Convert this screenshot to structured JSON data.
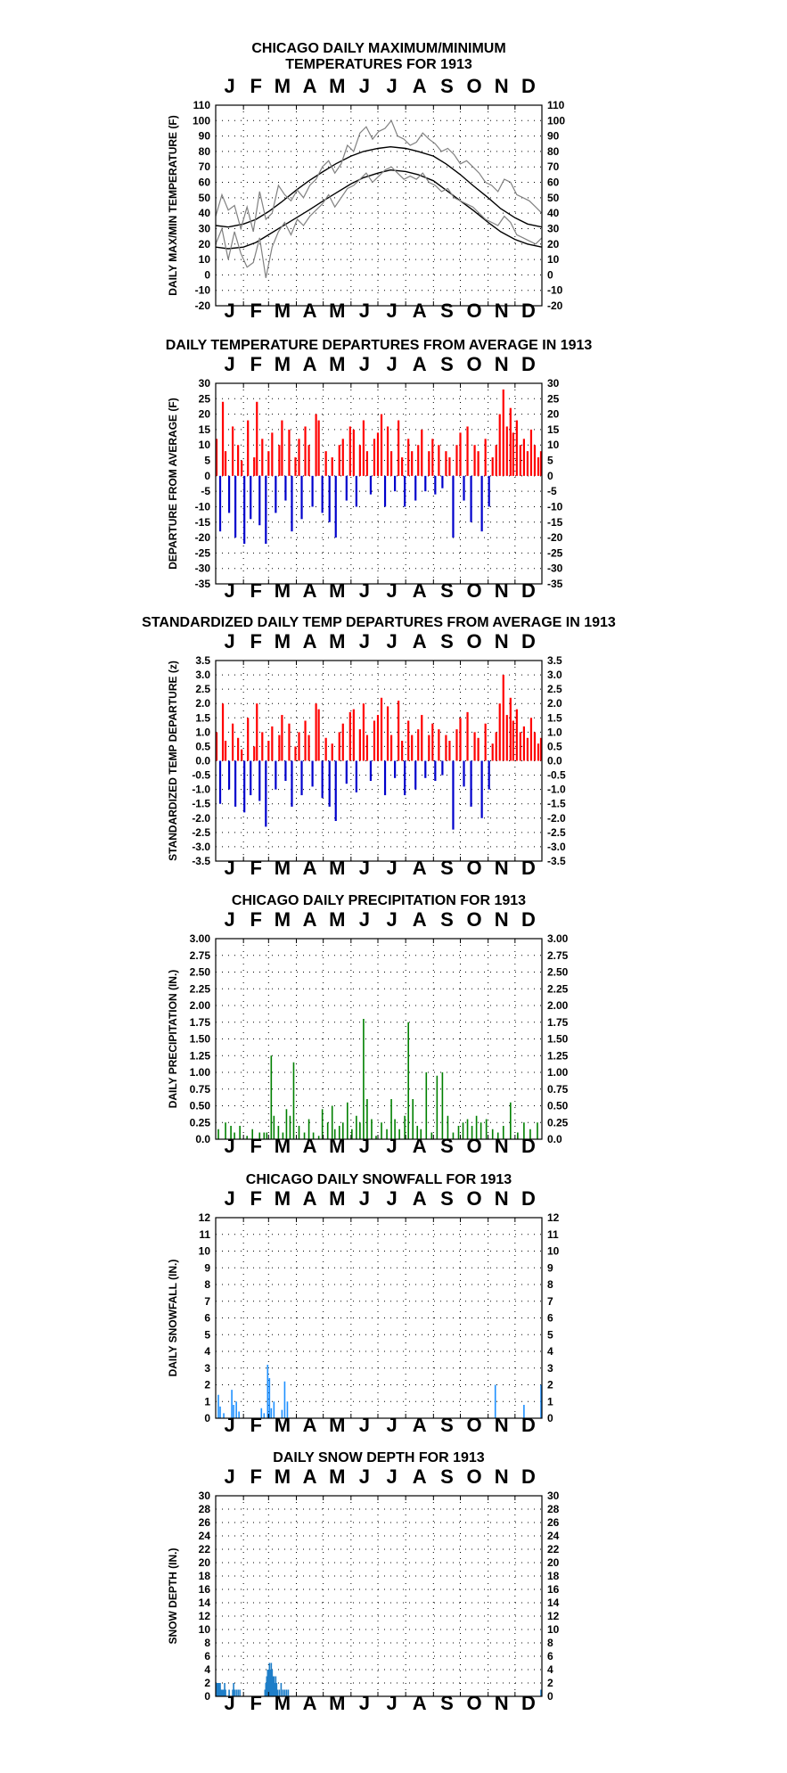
{
  "months": [
    "J",
    "F",
    "M",
    "A",
    "M",
    "J",
    "J",
    "A",
    "S",
    "O",
    "N",
    "D"
  ],
  "charts": [
    {
      "title_lines": [
        "CHICAGO DAILY MAXIMUM/MINIMUM",
        "TEMPERATURES FOR 1913"
      ],
      "ylabel": "DAILY MAX/MIN TEMPERATURE (F)",
      "yticks": [
        "110",
        "100",
        "90",
        "80",
        "70",
        "60",
        "50",
        "40",
        "30",
        "20",
        "10",
        "0",
        "-10",
        "-20"
      ]
    },
    {
      "title_lines": [
        "DAILY TEMPERATURE DEPARTURES FROM AVERAGE IN 1913"
      ],
      "ylabel": "DEPARTURE FROM AVERAGE (F)",
      "yticks": [
        "30",
        "25",
        "20",
        "15",
        "10",
        "5",
        "0",
        "-5",
        "-10",
        "-15",
        "-20",
        "-25",
        "-30",
        "-35"
      ]
    },
    {
      "title_lines": [
        "STANDARDIZED DAILY TEMP DEPARTURES FROM AVERAGE IN 1913"
      ],
      "ylabel": "STANDARDIZED TEMP DEPARTURE (z)",
      "yticks": [
        "3.5",
        "3.0",
        "2.5",
        "2.0",
        "1.5",
        "1.0",
        "0.5",
        "0.0",
        "-0.5",
        "-1.0",
        "-1.5",
        "-2.0",
        "-2.5",
        "-3.0",
        "-3.5"
      ]
    },
    {
      "title_lines": [
        "CHICAGO DAILY PRECIPITATION FOR 1913"
      ],
      "ylabel": "DAILY PRECIPITATION (IN.)",
      "yticks": [
        "3.00",
        "2.75",
        "2.50",
        "2.25",
        "2.00",
        "1.75",
        "1.50",
        "1.25",
        "1.00",
        "0.75",
        "0.50",
        "0.25",
        "0.0"
      ]
    },
    {
      "title_lines": [
        "CHICAGO DAILY SNOWFALL FOR 1913"
      ],
      "ylabel": "DAILY SNOWFALL (IN.)",
      "yticks": [
        "12",
        "11",
        "10",
        "9",
        "8",
        "7",
        "6",
        "5",
        "4",
        "3",
        "2",
        "1",
        "0"
      ]
    },
    {
      "title_lines": [
        "DAILY SNOW DEPTH FOR 1913"
      ],
      "ylabel": "SNOW DEPTH (IN.)",
      "yticks": [
        "30",
        "28",
        "26",
        "24",
        "22",
        "20",
        "18",
        "16",
        "14",
        "12",
        "10",
        "8",
        "6",
        "4",
        "2",
        "0"
      ]
    }
  ],
  "chart_data": [
    {
      "type": "line",
      "title": "CHICAGO DAILY MAXIMUM/MINIMUM TEMPERATURES FOR 1913",
      "ylabel": "DAILY MAX/MIN TEMPERATURE (F)",
      "ylim": [
        -20,
        110
      ],
      "grid": true,
      "x_unit": "day of year",
      "series": [
        {
          "style": "normal high line",
          "color": "#000000",
          "x": [
            1,
            15,
            32,
            46,
            60,
            74,
            91,
            105,
            121,
            135,
            152,
            166,
            182,
            196,
            213,
            227,
            244,
            258,
            274,
            288,
            305,
            319,
            335,
            349,
            365
          ],
          "values": [
            32,
            31,
            33,
            36,
            41,
            47,
            55,
            61,
            67,
            72,
            77,
            80,
            82,
            83,
            82,
            80,
            77,
            72,
            65,
            58,
            50,
            43,
            37,
            33,
            31
          ]
        },
        {
          "style": "normal low line",
          "color": "#000000",
          "x": [
            1,
            15,
            32,
            46,
            60,
            74,
            91,
            105,
            121,
            135,
            152,
            166,
            182,
            196,
            213,
            227,
            244,
            258,
            274,
            288,
            305,
            319,
            335,
            349,
            365
          ],
          "values": [
            18,
            17,
            18,
            21,
            26,
            31,
            37,
            42,
            48,
            53,
            59,
            63,
            66,
            68,
            67,
            65,
            61,
            55,
            48,
            42,
            34,
            28,
            23,
            20,
            18
          ]
        },
        {
          "style": "observed daily max (gray)",
          "color": "#808080",
          "x": [
            1,
            8,
            15,
            22,
            29,
            36,
            43,
            50,
            57,
            64,
            71,
            78,
            85,
            92,
            99,
            106,
            113,
            120,
            127,
            134,
            141,
            148,
            155,
            162,
            169,
            176,
            183,
            190,
            197,
            204,
            211,
            218,
            225,
            232,
            239,
            246,
            253,
            260,
            267,
            274,
            281,
            288,
            295,
            302,
            309,
            316,
            323,
            330,
            337,
            344,
            351,
            358,
            365
          ],
          "values": [
            38,
            52,
            42,
            45,
            30,
            44,
            28,
            54,
            36,
            40,
            58,
            52,
            48,
            55,
            50,
            58,
            62,
            70,
            74,
            66,
            72,
            84,
            80,
            92,
            96,
            88,
            93,
            95,
            100,
            90,
            88,
            84,
            86,
            92,
            88,
            85,
            80,
            82,
            78,
            72,
            74,
            70,
            66,
            60,
            58,
            54,
            62,
            60,
            52,
            50,
            48,
            44,
            40
          ]
        },
        {
          "style": "observed daily min (gray)",
          "color": "#808080",
          "x": [
            1,
            8,
            15,
            22,
            29,
            36,
            43,
            50,
            57,
            64,
            71,
            78,
            85,
            92,
            99,
            106,
            113,
            120,
            127,
            134,
            141,
            148,
            155,
            162,
            169,
            176,
            183,
            190,
            197,
            204,
            211,
            218,
            225,
            232,
            239,
            246,
            253,
            260,
            267,
            274,
            281,
            288,
            295,
            302,
            309,
            316,
            323,
            330,
            337,
            344,
            351,
            358,
            365
          ],
          "values": [
            20,
            30,
            10,
            28,
            14,
            5,
            8,
            24,
            -2,
            18,
            28,
            34,
            26,
            36,
            32,
            38,
            42,
            46,
            52,
            44,
            50,
            56,
            58,
            62,
            66,
            60,
            64,
            68,
            70,
            66,
            62,
            64,
            62,
            66,
            60,
            58,
            54,
            56,
            50,
            48,
            46,
            44,
            40,
            36,
            34,
            32,
            38,
            34,
            26,
            24,
            22,
            20,
            24
          ]
        }
      ]
    },
    {
      "type": "bar",
      "title": "DAILY TEMPERATURE DEPARTURES FROM AVERAGE IN 1913",
      "ylabel": "DEPARTURE FROM AVERAGE (F)",
      "ylim": [
        -35,
        30
      ],
      "grid": true,
      "colors": {
        "positive": "#ff0000",
        "negative": "#0000cc"
      },
      "x": [
        2,
        6,
        9,
        12,
        16,
        20,
        23,
        26,
        30,
        33,
        37,
        40,
        44,
        47,
        50,
        53,
        57,
        60,
        64,
        68,
        72,
        75,
        79,
        83,
        86,
        90,
        94,
        97,
        101,
        105,
        109,
        113,
        116,
        120,
        124,
        128,
        131,
        135,
        139,
        143,
        147,
        151,
        155,
        158,
        162,
        166,
        170,
        174,
        178,
        182,
        186,
        190,
        193,
        197,
        201,
        205,
        209,
        212,
        216,
        220,
        224,
        227,
        231,
        235,
        239,
        243,
        246,
        250,
        254,
        258,
        262,
        266,
        270,
        274,
        278,
        282,
        286,
        290,
        294,
        298,
        302,
        306,
        310,
        314,
        318,
        322,
        326,
        330,
        333,
        337,
        341,
        345,
        349,
        353,
        357,
        361,
        364
      ],
      "values": [
        12,
        -18,
        24,
        8,
        -12,
        16,
        -20,
        10,
        5,
        -22,
        18,
        -14,
        6,
        24,
        -16,
        12,
        -22,
        8,
        14,
        -12,
        10,
        18,
        -8,
        15,
        -18,
        6,
        12,
        -14,
        16,
        10,
        -10,
        20,
        18,
        -12,
        8,
        -15,
        6,
        -20,
        10,
        12,
        -8,
        16,
        15,
        -10,
        10,
        18,
        8,
        -6,
        12,
        14,
        20,
        -10,
        16,
        8,
        -5,
        18,
        6,
        -10,
        12,
        8,
        -8,
        10,
        15,
        -5,
        8,
        12,
        -6,
        10,
        -4,
        8,
        6,
        -20,
        10,
        14,
        -8,
        16,
        -15,
        10,
        8,
        -18,
        12,
        -10,
        6,
        10,
        20,
        28,
        16,
        22,
        14,
        18,
        10,
        12,
        8,
        15,
        10,
        6,
        8
      ]
    },
    {
      "type": "bar",
      "title": "STANDARDIZED DAILY TEMP DEPARTURES FROM AVERAGE IN 1913",
      "ylabel": "STANDARDIZED TEMP DEPARTURE (z)",
      "ylim": [
        -3.5,
        3.5
      ],
      "grid": true,
      "colors": {
        "positive": "#ff0000",
        "negative": "#0000cc"
      },
      "x": [
        2,
        6,
        9,
        12,
        16,
        20,
        23,
        26,
        30,
        33,
        37,
        40,
        44,
        47,
        50,
        53,
        57,
        60,
        64,
        68,
        72,
        75,
        79,
        83,
        86,
        90,
        94,
        97,
        101,
        105,
        109,
        113,
        116,
        120,
        124,
        128,
        131,
        135,
        139,
        143,
        147,
        151,
        155,
        158,
        162,
        166,
        170,
        174,
        178,
        182,
        186,
        190,
        193,
        197,
        201,
        205,
        209,
        212,
        216,
        220,
        224,
        227,
        231,
        235,
        239,
        243,
        246,
        250,
        254,
        258,
        262,
        266,
        270,
        274,
        278,
        282,
        286,
        290,
        294,
        298,
        302,
        306,
        310,
        314,
        318,
        322,
        326,
        330,
        333,
        337,
        341,
        345,
        349,
        353,
        357,
        361,
        364
      ],
      "values": [
        1.0,
        -1.5,
        2.0,
        0.7,
        -1.0,
        1.3,
        -1.6,
        0.8,
        0.4,
        -1.8,
        1.5,
        -1.2,
        0.5,
        2.0,
        -1.4,
        1.0,
        -2.3,
        0.7,
        1.2,
        -1.0,
        0.9,
        1.6,
        -0.7,
        1.3,
        -1.6,
        0.5,
        1.0,
        -1.2,
        1.4,
        0.9,
        -0.9,
        2.0,
        1.8,
        -1.3,
        0.8,
        -1.6,
        0.6,
        -2.1,
        1.0,
        1.3,
        -0.8,
        1.7,
        1.8,
        -1.1,
        1.1,
        2.0,
        0.9,
        -0.7,
        1.4,
        1.6,
        2.2,
        -1.2,
        1.9,
        0.9,
        -0.6,
        2.1,
        0.7,
        -1.2,
        1.4,
        0.9,
        -1.0,
        1.1,
        1.6,
        -0.6,
        0.9,
        1.3,
        -0.7,
        1.1,
        -0.5,
        0.9,
        0.7,
        -2.4,
        1.1,
        1.5,
        -0.9,
        1.7,
        -1.6,
        1.0,
        0.8,
        -2.0,
        1.3,
        -1.0,
        0.6,
        1.0,
        2.0,
        3.0,
        1.6,
        2.2,
        1.4,
        1.8,
        1.0,
        1.2,
        0.8,
        1.5,
        1.0,
        0.6,
        0.8
      ]
    },
    {
      "type": "bar",
      "title": "CHICAGO DAILY PRECIPITATION FOR 1913",
      "ylabel": "DAILY PRECIPITATION (IN.)",
      "ylim": [
        0,
        3.0
      ],
      "grid": true,
      "color": "#008000",
      "x": [
        4,
        12,
        18,
        22,
        28,
        36,
        42,
        50,
        55,
        58,
        63,
        66,
        71,
        76,
        80,
        84,
        88,
        94,
        100,
        105,
        110,
        116,
        120,
        126,
        131,
        134,
        139,
        143,
        148,
        153,
        158,
        162,
        166,
        170,
        175,
        180,
        186,
        192,
        197,
        201,
        206,
        212,
        216,
        221,
        226,
        230,
        236,
        242,
        248,
        254,
        260,
        266,
        272,
        277,
        282,
        287,
        292,
        297,
        303,
        310,
        316,
        322,
        330,
        338,
        345,
        352,
        360
      ],
      "values": [
        0.15,
        0.25,
        0.2,
        0.1,
        0.2,
        0.05,
        0.15,
        0.1,
        0.1,
        0.1,
        1.25,
        0.35,
        0.2,
        0.1,
        0.45,
        0.35,
        1.15,
        0.2,
        0.1,
        0.3,
        0.1,
        0.05,
        0.45,
        0.25,
        0.5,
        0.15,
        0.2,
        0.25,
        0.55,
        0.15,
        0.35,
        0.25,
        1.8,
        0.6,
        0.3,
        0.05,
        0.25,
        0.15,
        0.6,
        0.3,
        0.15,
        0.35,
        1.75,
        0.6,
        0.2,
        0.15,
        1.0,
        0.1,
        0.95,
        1.0,
        0.35,
        0.1,
        0.2,
        0.25,
        0.3,
        0.2,
        0.35,
        0.25,
        0.3,
        0.15,
        0.1,
        0.2,
        0.55,
        0.1,
        0.25,
        0.15,
        0.25
      ]
    },
    {
      "type": "bar",
      "title": "CHICAGO DAILY SNOWFALL FOR 1913",
      "ylabel": "DAILY SNOWFALL (IN.)",
      "ylim": [
        0,
        12
      ],
      "grid": true,
      "color": "#1e90ff",
      "x": [
        4,
        6,
        10,
        19,
        21,
        24,
        27,
        52,
        55,
        59,
        61,
        63,
        66,
        75,
        78,
        81,
        313,
        345,
        364
      ],
      "values": [
        1.4,
        0.7,
        0.3,
        1.7,
        0.8,
        1.0,
        0.4,
        0.6,
        0.3,
        3.2,
        2.4,
        0.6,
        1.0,
        0.5,
        2.2,
        1.0,
        2.0,
        0.8,
        2.0
      ]
    },
    {
      "type": "bar",
      "title": "DAILY SNOW DEPTH FOR 1913",
      "ylabel": "SNOW DEPTH (IN.)",
      "ylim": [
        0,
        30
      ],
      "grid": true,
      "color": "#1e7ec8",
      "x": [
        2,
        3,
        4,
        5,
        6,
        7,
        8,
        9,
        10,
        11,
        12,
        16,
        20,
        21,
        22,
        24,
        26,
        28,
        56,
        57,
        58,
        59,
        60,
        61,
        62,
        63,
        64,
        65,
        66,
        67,
        68,
        69,
        70,
        72,
        74,
        76,
        78,
        80,
        82,
        364
      ],
      "values": [
        2,
        2,
        2,
        2,
        2,
        1,
        1,
        1,
        1,
        2,
        1,
        1,
        1,
        2,
        1,
        1,
        1,
        1,
        1,
        2,
        3,
        4,
        4,
        5,
        4,
        5,
        4,
        3,
        3,
        2,
        3,
        2,
        1,
        1,
        2,
        1,
        1,
        1,
        1,
        1
      ]
    }
  ]
}
